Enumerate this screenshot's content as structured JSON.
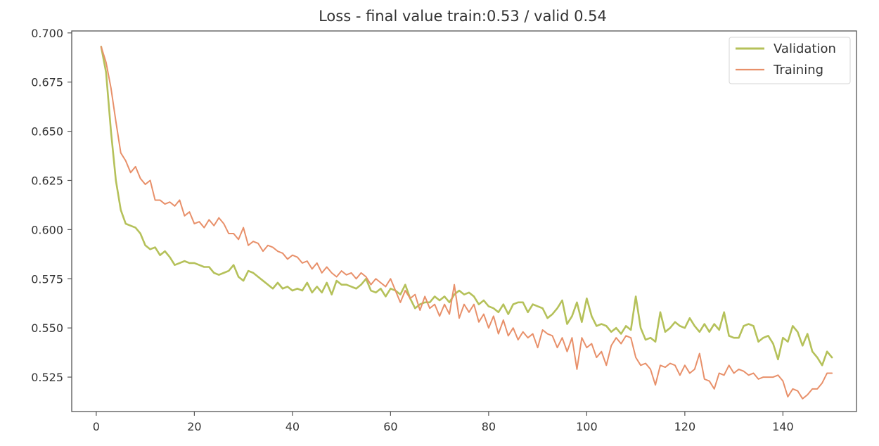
{
  "chart_data": {
    "type": "line",
    "title": "Loss - final value train:0.53 / valid 0.54",
    "xlabel": "",
    "ylabel": "",
    "xlim": [
      -5,
      155
    ],
    "ylim": [
      0.5075,
      0.701
    ],
    "xticks": [
      0,
      20,
      40,
      60,
      80,
      100,
      120,
      140
    ],
    "xtick_labels": [
      "0",
      "20",
      "40",
      "60",
      "80",
      "100",
      "120",
      "140"
    ],
    "yticks": [
      0.525,
      0.55,
      0.575,
      0.6,
      0.625,
      0.65,
      0.675,
      0.7
    ],
    "ytick_labels": [
      "0.525",
      "0.550",
      "0.575",
      "0.600",
      "0.625",
      "0.650",
      "0.675",
      "0.700"
    ],
    "grid": false,
    "legend_position": "top-right",
    "series": [
      {
        "name": "Validation",
        "color": "#b5c15a",
        "x": [
          1,
          2,
          3,
          4,
          5,
          6,
          7,
          8,
          9,
          10,
          11,
          12,
          13,
          14,
          15,
          16,
          17,
          18,
          19,
          20,
          21,
          22,
          23,
          24,
          25,
          26,
          27,
          28,
          29,
          30,
          31,
          32,
          33,
          34,
          35,
          36,
          37,
          38,
          39,
          40,
          41,
          42,
          43,
          44,
          45,
          46,
          47,
          48,
          49,
          50,
          51,
          52,
          53,
          54,
          55,
          56,
          57,
          58,
          59,
          60,
          61,
          62,
          63,
          64,
          65,
          66,
          67,
          68,
          69,
          70,
          71,
          72,
          73,
          74,
          75,
          76,
          77,
          78,
          79,
          80,
          81,
          82,
          83,
          84,
          85,
          86,
          87,
          88,
          89,
          90,
          91,
          92,
          93,
          94,
          95,
          96,
          97,
          98,
          99,
          100,
          101,
          102,
          103,
          104,
          105,
          106,
          107,
          108,
          109,
          110,
          111,
          112,
          113,
          114,
          115,
          116,
          117,
          118,
          119,
          120,
          121,
          122,
          123,
          124,
          125,
          126,
          127,
          128,
          129,
          130,
          131,
          132,
          133,
          134,
          135,
          136,
          137,
          138,
          139,
          140,
          141,
          142,
          143,
          144,
          145,
          146,
          147,
          148,
          149,
          150
        ],
        "values": [
          0.693,
          0.68,
          0.65,
          0.625,
          0.61,
          0.603,
          0.602,
          0.601,
          0.598,
          0.592,
          0.59,
          0.591,
          0.587,
          0.589,
          0.586,
          0.582,
          0.583,
          0.584,
          0.583,
          0.583,
          0.582,
          0.581,
          0.581,
          0.578,
          0.577,
          0.578,
          0.579,
          0.582,
          0.576,
          0.574,
          0.579,
          0.578,
          0.576,
          0.574,
          0.572,
          0.57,
          0.573,
          0.57,
          0.571,
          0.569,
          0.57,
          0.569,
          0.573,
          0.568,
          0.571,
          0.568,
          0.573,
          0.567,
          0.574,
          0.572,
          0.572,
          0.571,
          0.57,
          0.572,
          0.575,
          0.569,
          0.568,
          0.57,
          0.566,
          0.57,
          0.569,
          0.567,
          0.572,
          0.565,
          0.56,
          0.562,
          0.563,
          0.563,
          0.566,
          0.564,
          0.566,
          0.563,
          0.567,
          0.569,
          0.567,
          0.568,
          0.566,
          0.562,
          0.564,
          0.561,
          0.56,
          0.558,
          0.562,
          0.557,
          0.562,
          0.563,
          0.563,
          0.558,
          0.562,
          0.561,
          0.56,
          0.555,
          0.557,
          0.56,
          0.564,
          0.552,
          0.556,
          0.563,
          0.553,
          0.565,
          0.556,
          0.551,
          0.552,
          0.551,
          0.548,
          0.55,
          0.547,
          0.551,
          0.549,
          0.566,
          0.55,
          0.544,
          0.545,
          0.543,
          0.558,
          0.548,
          0.55,
          0.553,
          0.551,
          0.55,
          0.555,
          0.551,
          0.548,
          0.552,
          0.548,
          0.552,
          0.549,
          0.558,
          0.546,
          0.545,
          0.545,
          0.551,
          0.552,
          0.551,
          0.543,
          0.545,
          0.546,
          0.542,
          0.534,
          0.545,
          0.543,
          0.551,
          0.548,
          0.541,
          0.547,
          0.538,
          0.535,
          0.531,
          0.538,
          0.535
        ]
      },
      {
        "name": "Training",
        "color": "#e8906a",
        "x": [
          1,
          2,
          3,
          4,
          5,
          6,
          7,
          8,
          9,
          10,
          11,
          12,
          13,
          14,
          15,
          16,
          17,
          18,
          19,
          20,
          21,
          22,
          23,
          24,
          25,
          26,
          27,
          28,
          29,
          30,
          31,
          32,
          33,
          34,
          35,
          36,
          37,
          38,
          39,
          40,
          41,
          42,
          43,
          44,
          45,
          46,
          47,
          48,
          49,
          50,
          51,
          52,
          53,
          54,
          55,
          56,
          57,
          58,
          59,
          60,
          61,
          62,
          63,
          64,
          65,
          66,
          67,
          68,
          69,
          70,
          71,
          72,
          73,
          74,
          75,
          76,
          77,
          78,
          79,
          80,
          81,
          82,
          83,
          84,
          85,
          86,
          87,
          88,
          89,
          90,
          91,
          92,
          93,
          94,
          95,
          96,
          97,
          98,
          99,
          100,
          101,
          102,
          103,
          104,
          105,
          106,
          107,
          108,
          109,
          110,
          111,
          112,
          113,
          114,
          115,
          116,
          117,
          118,
          119,
          120,
          121,
          122,
          123,
          124,
          125,
          126,
          127,
          128,
          129,
          130,
          131,
          132,
          133,
          134,
          135,
          136,
          137,
          138,
          139,
          140,
          141,
          142,
          143,
          144,
          145,
          146,
          147,
          148,
          149,
          150
        ],
        "values": [
          0.693,
          0.685,
          0.672,
          0.655,
          0.639,
          0.635,
          0.629,
          0.632,
          0.626,
          0.623,
          0.625,
          0.615,
          0.615,
          0.613,
          0.614,
          0.612,
          0.615,
          0.607,
          0.609,
          0.603,
          0.604,
          0.601,
          0.605,
          0.602,
          0.606,
          0.603,
          0.598,
          0.598,
          0.595,
          0.601,
          0.592,
          0.594,
          0.593,
          0.589,
          0.592,
          0.591,
          0.589,
          0.588,
          0.585,
          0.587,
          0.586,
          0.583,
          0.584,
          0.58,
          0.583,
          0.578,
          0.581,
          0.578,
          0.576,
          0.579,
          0.577,
          0.578,
          0.575,
          0.578,
          0.576,
          0.572,
          0.575,
          0.573,
          0.571,
          0.575,
          0.569,
          0.563,
          0.569,
          0.565,
          0.567,
          0.559,
          0.566,
          0.56,
          0.562,
          0.556,
          0.562,
          0.557,
          0.572,
          0.555,
          0.562,
          0.558,
          0.562,
          0.553,
          0.557,
          0.55,
          0.556,
          0.547,
          0.554,
          0.546,
          0.55,
          0.544,
          0.548,
          0.545,
          0.547,
          0.54,
          0.549,
          0.547,
          0.546,
          0.54,
          0.545,
          0.538,
          0.545,
          0.529,
          0.545,
          0.54,
          0.542,
          0.535,
          0.538,
          0.531,
          0.541,
          0.545,
          0.542,
          0.546,
          0.545,
          0.535,
          0.531,
          0.532,
          0.529,
          0.521,
          0.531,
          0.53,
          0.532,
          0.531,
          0.526,
          0.531,
          0.527,
          0.529,
          0.537,
          0.524,
          0.523,
          0.519,
          0.527,
          0.526,
          0.531,
          0.527,
          0.529,
          0.528,
          0.526,
          0.527,
          0.524,
          0.525,
          0.525,
          0.525,
          0.526,
          0.523,
          0.515,
          0.519,
          0.518,
          0.514,
          0.516,
          0.519,
          0.519,
          0.522,
          0.527,
          0.527
        ]
      }
    ]
  }
}
